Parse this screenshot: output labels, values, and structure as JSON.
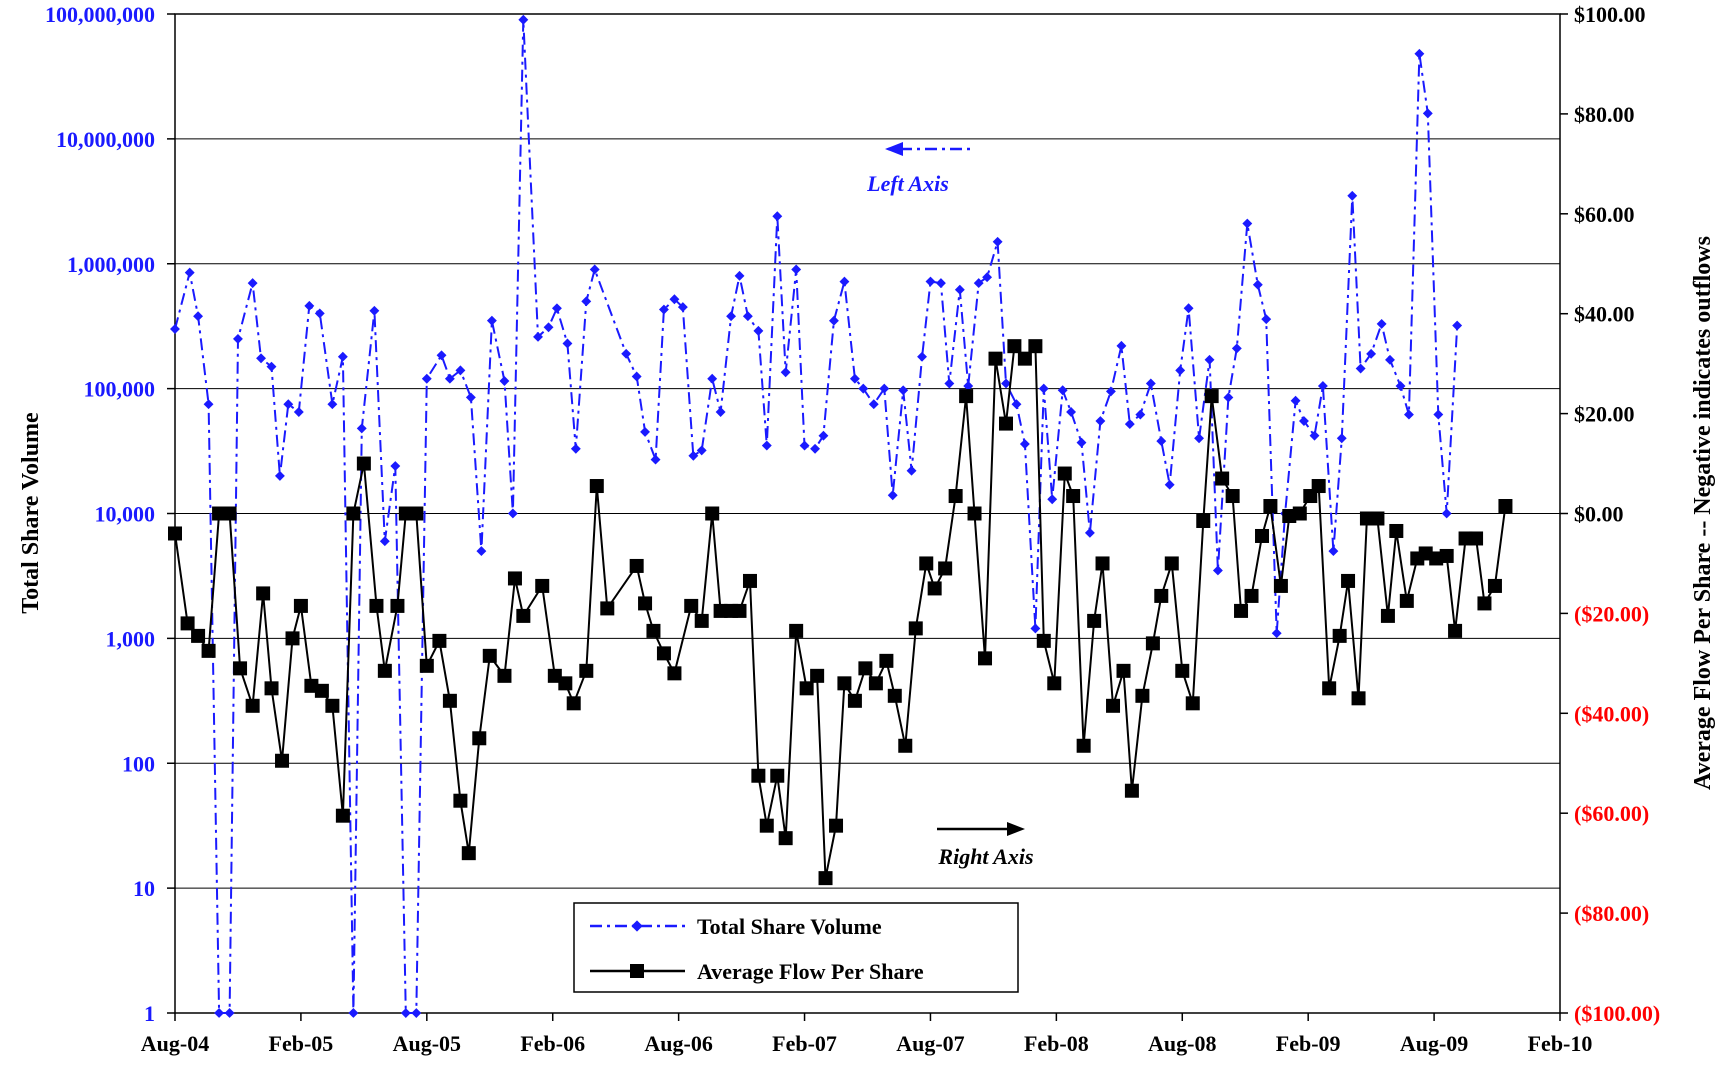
{
  "chart_data": {
    "type": "line",
    "y_left_label": "Total Share Volume",
    "y_right_label": "Average Flow Per Share -- Negative indicates outflows",
    "y_left_scale": "log",
    "y_left_range": [
      1,
      100000000
    ],
    "y_left_ticks": [
      "1",
      "10",
      "100",
      "1,000",
      "10,000",
      "100,000",
      "1,000,000",
      "10,000,000",
      "100,000,000"
    ],
    "y_right_range": [
      -100,
      100
    ],
    "y_right_ticks": [
      "($100.00)",
      "($80.00)",
      "($60.00)",
      "($40.00)",
      "($20.00)",
      "$0.00",
      "$20.00",
      "$40.00",
      "$60.00",
      "$80.00",
      "$100.00"
    ],
    "x_range": [
      0,
      66
    ],
    "x_ticks": [
      {
        "label": "Aug-04",
        "x": 0
      },
      {
        "label": "Feb-05",
        "x": 6
      },
      {
        "label": "Aug-05",
        "x": 12
      },
      {
        "label": "Feb-06",
        "x": 18
      },
      {
        "label": "Aug-06",
        "x": 24
      },
      {
        "label": "Feb-07",
        "x": 30
      },
      {
        "label": "Aug-07",
        "x": 36
      },
      {
        "label": "Feb-08",
        "x": 42
      },
      {
        "label": "Aug-08",
        "x": 48
      },
      {
        "label": "Feb-09",
        "x": 54
      },
      {
        "label": "Aug-09",
        "x": 60
      },
      {
        "label": "Feb-10",
        "x": 66
      }
    ],
    "grid": true,
    "legend_position": "bottom-center",
    "annotations": [
      {
        "text": "Left Axis",
        "arrow": "left",
        "color": "#1a1aff"
      },
      {
        "text": "Right Axis",
        "arrow": "right",
        "color": "#000000"
      }
    ],
    "series": [
      {
        "name": "Total Share Volume",
        "axis": "left",
        "color": "#1a1aff",
        "style": "dash-dot",
        "marker": "diamond",
        "points": [
          [
            0,
            300000
          ],
          [
            0.7,
            850000
          ],
          [
            1.1,
            380000
          ],
          [
            1.6,
            75000
          ],
          [
            2.1,
            1
          ],
          [
            2.6,
            1
          ],
          [
            3.0,
            250000
          ],
          [
            3.7,
            700000
          ],
          [
            4.1,
            175000
          ],
          [
            4.6,
            150000
          ],
          [
            5.0,
            20000
          ],
          [
            5.4,
            75000
          ],
          [
            5.9,
            65000
          ],
          [
            6.4,
            460000
          ],
          [
            6.9,
            400000
          ],
          [
            7.5,
            75000
          ],
          [
            8.0,
            180000
          ],
          [
            8.5,
            1
          ],
          [
            8.9,
            48000
          ],
          [
            9.5,
            420000
          ],
          [
            10.0,
            6000
          ],
          [
            10.5,
            24000
          ],
          [
            11.0,
            1
          ],
          [
            11.5,
            1
          ],
          [
            12.0,
            120000
          ],
          [
            12.7,
            185000
          ],
          [
            13.1,
            120000
          ],
          [
            13.6,
            140000
          ],
          [
            14.1,
            85000
          ],
          [
            14.6,
            5000
          ],
          [
            15.1,
            350000
          ],
          [
            15.7,
            115000
          ],
          [
            16.1,
            10000
          ],
          [
            16.6,
            90000000
          ],
          [
            17.3,
            260000
          ],
          [
            17.8,
            310000
          ],
          [
            18.2,
            440000
          ],
          [
            18.7,
            230000
          ],
          [
            19.1,
            33000
          ],
          [
            19.6,
            500000
          ],
          [
            20.0,
            900000
          ],
          [
            21.5,
            190000
          ],
          [
            22.0,
            125000
          ],
          [
            22.4,
            45000
          ],
          [
            22.9,
            27000
          ],
          [
            23.3,
            430000
          ],
          [
            23.8,
            520000
          ],
          [
            24.2,
            450000
          ],
          [
            24.7,
            29000
          ],
          [
            25.1,
            32000
          ],
          [
            25.6,
            120000
          ],
          [
            26.0,
            65000
          ],
          [
            26.5,
            380000
          ],
          [
            26.9,
            800000
          ],
          [
            27.3,
            380000
          ],
          [
            27.8,
            290000
          ],
          [
            28.2,
            35000
          ],
          [
            28.7,
            2400000
          ],
          [
            29.1,
            135000
          ],
          [
            29.6,
            900000
          ],
          [
            30.0,
            35000
          ],
          [
            30.5,
            33000
          ],
          [
            30.9,
            42000
          ],
          [
            31.4,
            350000
          ],
          [
            31.9,
            720000
          ],
          [
            32.4,
            120000
          ],
          [
            32.8,
            100000
          ],
          [
            33.3,
            75000
          ],
          [
            33.8,
            100000
          ],
          [
            34.2,
            14000
          ],
          [
            34.7,
            97000
          ],
          [
            35.1,
            22000
          ],
          [
            35.6,
            180000
          ],
          [
            36.0,
            720000
          ],
          [
            36.5,
            700000
          ],
          [
            36.9,
            110000
          ],
          [
            37.4,
            620000
          ],
          [
            37.8,
            105000
          ],
          [
            38.3,
            700000
          ],
          [
            38.7,
            780000
          ],
          [
            39.2,
            1500000
          ],
          [
            39.6,
            110000
          ],
          [
            40.1,
            75000
          ],
          [
            40.5,
            36000
          ],
          [
            41.0,
            1200
          ],
          [
            41.4,
            100000
          ],
          [
            41.8,
            13000
          ],
          [
            42.3,
            97000
          ],
          [
            42.7,
            65000
          ],
          [
            43.2,
            37000
          ],
          [
            43.6,
            7000
          ],
          [
            44.1,
            55000
          ],
          [
            44.6,
            95000
          ],
          [
            45.1,
            220000
          ],
          [
            45.5,
            52000
          ],
          [
            46.0,
            62000
          ],
          [
            46.5,
            110000
          ],
          [
            47.0,
            38000
          ],
          [
            47.4,
            17000
          ],
          [
            47.9,
            140000
          ],
          [
            48.3,
            440000
          ],
          [
            48.8,
            40000
          ],
          [
            49.3,
            170000
          ],
          [
            49.7,
            3500
          ],
          [
            50.2,
            85000
          ],
          [
            50.6,
            210000
          ],
          [
            51.1,
            2100000
          ],
          [
            51.6,
            680000
          ],
          [
            52.0,
            360000
          ],
          [
            52.5,
            1100
          ],
          [
            52.9,
            10000
          ],
          [
            53.4,
            80000
          ],
          [
            53.8,
            55000
          ],
          [
            54.3,
            42000
          ],
          [
            54.7,
            105000
          ],
          [
            55.2,
            5000
          ],
          [
            55.6,
            40000
          ],
          [
            56.1,
            3500000
          ],
          [
            56.5,
            145000
          ],
          [
            57.0,
            190000
          ],
          [
            57.5,
            330000
          ],
          [
            57.9,
            170000
          ],
          [
            58.4,
            105000
          ],
          [
            58.8,
            62000
          ],
          [
            59.3,
            48000000
          ],
          [
            59.7,
            16000000
          ],
          [
            60.2,
            62000
          ],
          [
            60.6,
            10000
          ],
          [
            61.1,
            320000
          ]
        ]
      },
      {
        "name": "Average Flow Per Share",
        "axis": "right",
        "color": "#000000",
        "style": "solid",
        "marker": "square",
        "points": [
          [
            0,
            -4
          ],
          [
            0.6,
            -22
          ],
          [
            1.1,
            -24.5
          ],
          [
            1.6,
            -27.5
          ],
          [
            2.1,
            0
          ],
          [
            2.6,
            0
          ],
          [
            3.1,
            -31
          ],
          [
            3.7,
            -38.5
          ],
          [
            4.2,
            -16
          ],
          [
            4.6,
            -35
          ],
          [
            5.1,
            -49.5
          ],
          [
            5.6,
            -25
          ],
          [
            6.0,
            -18.5
          ],
          [
            6.5,
            -34.5
          ],
          [
            7.0,
            -35.5
          ],
          [
            7.5,
            -38.5
          ],
          [
            8.0,
            -60.5
          ],
          [
            8.5,
            0
          ],
          [
            9.0,
            10
          ],
          [
            9.6,
            -18.5
          ],
          [
            10.0,
            -31.5
          ],
          [
            10.6,
            -18.5
          ],
          [
            11.0,
            0
          ],
          [
            11.5,
            0
          ],
          [
            12.0,
            -30.5
          ],
          [
            12.6,
            -25.5
          ],
          [
            13.1,
            -37.5
          ],
          [
            13.6,
            -57.5
          ],
          [
            14.0,
            -68
          ],
          [
            14.5,
            -45
          ],
          [
            15.0,
            -28.5
          ],
          [
            15.7,
            -32.5
          ],
          [
            16.2,
            -13
          ],
          [
            16.6,
            -20.5
          ],
          [
            17.5,
            -14.5
          ],
          [
            18.1,
            -32.5
          ],
          [
            18.6,
            -34
          ],
          [
            19.0,
            -38
          ],
          [
            19.6,
            -31.5
          ],
          [
            20.1,
            5.5
          ],
          [
            20.6,
            -19
          ],
          [
            22.0,
            -10.5
          ],
          [
            22.4,
            -18
          ],
          [
            22.8,
            -23.5
          ],
          [
            23.3,
            -28
          ],
          [
            23.8,
            -32
          ],
          [
            24.6,
            -18.5
          ],
          [
            25.1,
            -21.5
          ],
          [
            25.6,
            0
          ],
          [
            26.0,
            -19.5
          ],
          [
            26.5,
            -19.5
          ],
          [
            26.9,
            -19.5
          ],
          [
            27.4,
            -13.5
          ],
          [
            27.8,
            -52.5
          ],
          [
            28.2,
            -62.5
          ],
          [
            28.7,
            -52.5
          ],
          [
            29.1,
            -65
          ],
          [
            29.6,
            -23.5
          ],
          [
            30.1,
            -35
          ],
          [
            30.6,
            -32.5
          ],
          [
            31.0,
            -73
          ],
          [
            31.5,
            -62.5
          ],
          [
            31.9,
            -34
          ],
          [
            32.4,
            -37.5
          ],
          [
            32.9,
            -31
          ],
          [
            33.4,
            -34
          ],
          [
            33.9,
            -29.5
          ],
          [
            34.3,
            -36.5
          ],
          [
            34.8,
            -46.5
          ],
          [
            35.3,
            -23
          ],
          [
            35.8,
            -10
          ],
          [
            36.2,
            -15
          ],
          [
            36.7,
            -11
          ],
          [
            37.2,
            3.5
          ],
          [
            37.7,
            23.5
          ],
          [
            38.1,
            0
          ],
          [
            38.6,
            -29
          ],
          [
            39.1,
            31
          ],
          [
            39.6,
            18
          ],
          [
            40.0,
            33.5
          ],
          [
            40.5,
            31
          ],
          [
            41.0,
            33.5
          ],
          [
            41.4,
            -25.5
          ],
          [
            41.9,
            -34
          ],
          [
            42.4,
            8
          ],
          [
            42.8,
            3.5
          ],
          [
            43.3,
            -46.5
          ],
          [
            43.8,
            -21.5
          ],
          [
            44.2,
            -10
          ],
          [
            44.7,
            -38.5
          ],
          [
            45.2,
            -31.5
          ],
          [
            45.6,
            -55.5
          ],
          [
            46.1,
            -36.5
          ],
          [
            46.6,
            -26
          ],
          [
            47.0,
            -16.5
          ],
          [
            47.5,
            -10
          ],
          [
            48.0,
            -31.5
          ],
          [
            48.5,
            -38
          ],
          [
            49.0,
            -1.5
          ],
          [
            49.4,
            23.5
          ],
          [
            49.9,
            7
          ],
          [
            50.4,
            3.5
          ],
          [
            50.8,
            -19.5
          ],
          [
            51.3,
            -16.5
          ],
          [
            51.8,
            -4.5
          ],
          [
            52.2,
            1.5
          ],
          [
            52.7,
            -14.5
          ],
          [
            53.1,
            -0.5
          ],
          [
            53.6,
            0
          ],
          [
            54.1,
            3.5
          ],
          [
            54.5,
            5.5
          ],
          [
            55.0,
            -35
          ],
          [
            55.5,
            -24.5
          ],
          [
            55.9,
            -13.5
          ],
          [
            56.4,
            -37
          ],
          [
            56.8,
            -1
          ],
          [
            57.3,
            -1
          ],
          [
            57.8,
            -20.5
          ],
          [
            58.2,
            -3.5
          ],
          [
            58.7,
            -17.5
          ],
          [
            59.2,
            -9
          ],
          [
            59.6,
            -8
          ],
          [
            60.1,
            -9
          ],
          [
            60.6,
            -8.5
          ],
          [
            61.0,
            -23.5
          ],
          [
            61.5,
            -5
          ],
          [
            62.0,
            -5
          ],
          [
            62.4,
            -18
          ],
          [
            62.9,
            -14.5
          ],
          [
            63.4,
            1.5
          ]
        ]
      }
    ]
  }
}
